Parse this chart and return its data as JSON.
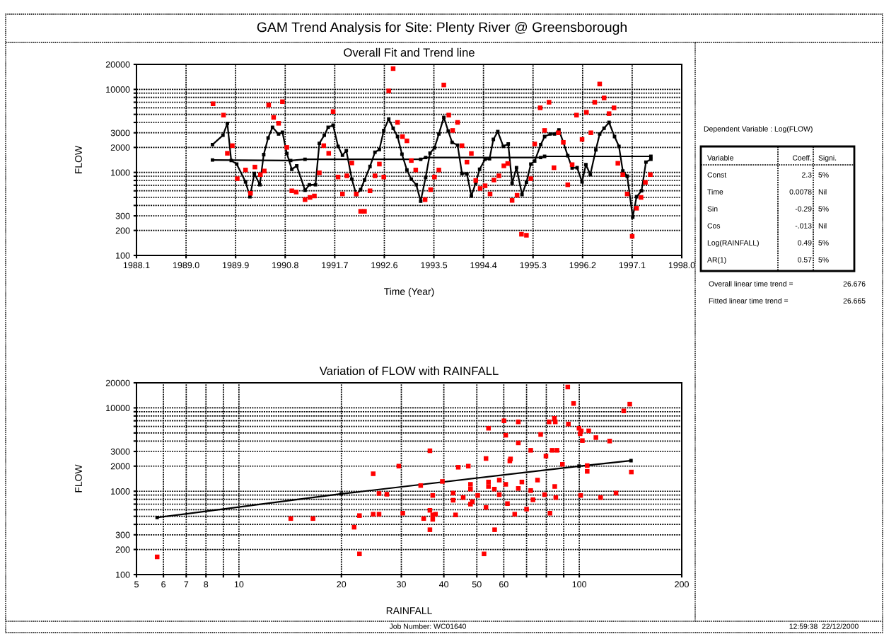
{
  "chart_data": [
    {
      "type": "scatter",
      "title": "Overall Fit and Trend line",
      "xlabel": "Time (Year)",
      "ylabel": "FLOW",
      "log": true,
      "grid": true,
      "xlim": [
        1988.1,
        1998.0
      ],
      "xticks": [
        1988.1,
        {
          "value": 1989.0,
          "label": "1989.0"
        },
        1989.9,
        1990.8,
        1991.7,
        1992.6,
        1993.5,
        1994.4,
        1995.3,
        1996.2,
        1997.1,
        {
          "value": 1998.0,
          "label": "1998.0"
        }
      ],
      "ylim": [
        100,
        20000
      ],
      "yticks": [
        100,
        200,
        300,
        {
          "value": 400,
          "label": null
        },
        {
          "value": 500,
          "label": null
        },
        {
          "value": 600,
          "label": null
        },
        {
          "value": 700,
          "label": null
        },
        {
          "value": 800,
          "label": null
        },
        {
          "value": 900,
          "label": null
        },
        1000,
        2000,
        3000,
        {
          "value": 4000,
          "label": null
        },
        {
          "value": 5000,
          "label": null
        },
        {
          "value": 6000,
          "label": null
        },
        {
          "value": 7000,
          "label": null
        },
        {
          "value": 8000,
          "label": null
        },
        {
          "value": 9000,
          "label": null
        },
        10000,
        20000
      ],
      "series": [
        {
          "type": "scatter",
          "color": "#ff0000",
          "marker": "square",
          "x": [
            1989.49,
            1989.68,
            1989.75,
            1989.84,
            1989.93,
            1990.08,
            1990.17,
            1990.25,
            1990.35,
            1990.42,
            1990.5,
            1990.59,
            1990.68,
            1990.75,
            1990.83,
            1990.92,
            1991.0,
            1991.16,
            1991.25,
            1991.33,
            1991.42,
            1991.5,
            1991.59,
            1991.67,
            1991.76,
            1991.84,
            1991.92,
            1992.01,
            1992.09,
            1992.17,
            1992.24,
            1992.34,
            1992.43,
            1992.51,
            1992.59,
            1992.68,
            1992.76,
            1992.84,
            1992.93,
            1993.01,
            1993.09,
            1993.17,
            1993.34,
            1993.44,
            1993.51,
            1993.59,
            1993.68,
            1993.77,
            1993.84,
            1993.93,
            1994.01,
            1994.1,
            1994.18,
            1994.26,
            1994.34,
            1994.43,
            1994.52,
            1994.59,
            1994.68,
            1994.77,
            1994.84,
            1994.92,
            1995.01,
            1995.09,
            1995.18,
            1995.26,
            1995.33,
            1995.43,
            1995.51,
            1995.59,
            1995.68,
            1995.76,
            1995.85,
            1995.93,
            1996.01,
            1996.09,
            1996.19,
            1996.27,
            1996.35,
            1996.42,
            1996.51,
            1996.59,
            1996.68,
            1996.77,
            1996.84,
            1996.93,
            1997.01,
            1997.1,
            1997.18,
            1997.26,
            1997.34,
            1997.43
          ],
          "values": [
            6700,
            4900,
            1700,
            2100,
            840,
            1070,
            560,
            1160,
            940,
            1040,
            6500,
            4600,
            3900,
            7100,
            2000,
            600,
            580,
            470,
            500,
            520,
            990,
            2100,
            1700,
            5400,
            880,
            550,
            910,
            1300,
            550,
            340,
            340,
            600,
            910,
            1260,
            880,
            9600,
            17800,
            4000,
            2700,
            2400,
            1390,
            1070,
            470,
            620,
            880,
            1070,
            11300,
            4900,
            3200,
            4000,
            2100,
            1330,
            1690,
            800,
            640,
            690,
            550,
            810,
            910,
            1200,
            1280,
            460,
            530,
            180,
            175,
            840,
            2200,
            6000,
            3200,
            7000,
            1140,
            3000,
            2300,
            710,
            1240,
            4900,
            2500,
            5300,
            3000,
            7000,
            11600,
            7900,
            5100,
            6000,
            1290,
            940,
            550,
            170,
            370,
            500,
            760,
            940
          ]
        },
        {
          "type": "line",
          "color": "#000000",
          "marker": "square",
          "line_style": "solid",
          "x": [
            1989.48,
            1989.67,
            1989.75,
            1989.82,
            1989.92,
            1990.08,
            1990.16,
            1990.24,
            1990.34,
            1990.41,
            1990.49,
            1990.57,
            1990.68,
            1990.75,
            1990.83,
            1990.92,
            1991.01,
            1991.16,
            1991.24,
            1991.35,
            1991.42,
            1991.51,
            1991.58,
            1991.67,
            1991.76,
            1991.84,
            1991.91,
            1992.01,
            1992.09,
            1992.17,
            1992.24,
            1992.34,
            1992.43,
            1992.51,
            1992.59,
            1992.68,
            1992.76,
            1992.84,
            1992.92,
            1993.01,
            1993.09,
            1993.18,
            1993.26,
            1993.35,
            1993.43,
            1993.51,
            1993.59,
            1993.68,
            1993.76,
            1993.83,
            1993.93,
            1994.01,
            1994.1,
            1994.18,
            1994.26,
            1994.33,
            1994.43,
            1994.51,
            1994.58,
            1994.66,
            1994.76,
            1994.85,
            1994.92,
            1995.0,
            1995.1,
            1995.18,
            1995.26,
            1995.33,
            1995.44,
            1995.51,
            1995.61,
            1995.69,
            1995.77,
            1995.85,
            1995.93,
            1996.01,
            1996.1,
            1996.19,
            1996.26,
            1996.34,
            1996.44,
            1996.51,
            1996.59,
            1996.68,
            1996.78,
            1996.86,
            1996.93,
            1997.01,
            1997.11,
            1997.18,
            1997.27,
            1997.35,
            1997.44
          ],
          "values": [
            2160,
            2800,
            3900,
            1390,
            1260,
            770,
            510,
            970,
            710,
            1640,
            2600,
            3500,
            2900,
            3050,
            1690,
            1090,
            1200,
            610,
            710,
            710,
            2240,
            2800,
            3500,
            3700,
            2060,
            1610,
            1830,
            830,
            540,
            620,
            810,
            1180,
            1750,
            1890,
            3200,
            4400,
            3400,
            2700,
            1660,
            1070,
            830,
            710,
            450,
            870,
            1710,
            1970,
            2900,
            4600,
            3150,
            2300,
            2130,
            970,
            960,
            520,
            750,
            1090,
            1440,
            1460,
            2500,
            3100,
            2060,
            2200,
            740,
            1140,
            540,
            760,
            1260,
            1370,
            2160,
            2700,
            2900,
            2900,
            3250,
            2300,
            1590,
            1130,
            1140,
            770,
            1240,
            940,
            1870,
            2900,
            3400,
            4000,
            2700,
            2060,
            1040,
            900,
            290,
            510,
            600,
            1330,
            1440
          ]
        },
        {
          "type": "line",
          "color": "#000000",
          "marker": "square",
          "line_style": "solid",
          "x": [
            1989.48,
            1990.9,
            1991.16,
            1993.26,
            1993.35,
            1995.44,
            1995.51,
            1997.44
          ],
          "values": [
            1410,
            1390,
            1440,
            1440,
            1510,
            1510,
            1560,
            1560
          ]
        }
      ]
    },
    {
      "type": "scatter",
      "title": "Variation of FLOW with RAINFALL",
      "xlabel": "RAINFALL",
      "ylabel": "FLOW",
      "log": "xy",
      "grid": true,
      "xlim": [
        5,
        200
      ],
      "xticks": [
        5,
        6,
        7,
        8,
        {
          "value": 9,
          "label": null
        },
        10,
        20,
        30,
        40,
        50,
        60,
        {
          "value": 70,
          "label": null
        },
        {
          "value": 80,
          "label": null
        },
        {
          "value": 90,
          "label": null
        },
        100,
        200
      ],
      "ylim": [
        100,
        20000
      ],
      "yticks": [
        100,
        200,
        300,
        {
          "value": 400,
          "label": null
        },
        {
          "value": 500,
          "label": null
        },
        {
          "value": 600,
          "label": null
        },
        {
          "value": 700,
          "label": null
        },
        {
          "value": 800,
          "label": null
        },
        {
          "value": 900,
          "label": null
        },
        1000,
        2000,
        3000,
        {
          "value": 4000,
          "label": null
        },
        {
          "value": 5000,
          "label": null
        },
        {
          "value": 6000,
          "label": null
        },
        {
          "value": 7000,
          "label": null
        },
        {
          "value": 8000,
          "label": null
        },
        {
          "value": 9000,
          "label": null
        },
        10000,
        20000
      ],
      "series": [
        {
          "type": "scatter",
          "color": "#ff0000",
          "marker": "square",
          "x": [
            5.75,
            14.2,
            16.5,
            21.8,
            22.6,
            22.6,
            24.8,
            24.8,
            25.8,
            25.8,
            27.2,
            29.5,
            30.3,
            34.2,
            34.9,
            36.4,
            36.4,
            36.4,
            37.1,
            37.1,
            37.8,
            37.1,
            39.6,
            42.6,
            42.6,
            43.3,
            44.1,
            45.6,
            47.2,
            47.9,
            47.9,
            47.9,
            48.5,
            50.3,
            52.5,
            53.2,
            53.2,
            54.1,
            54.1,
            54.1,
            56.3,
            56.4,
            58.2,
            58.2,
            60.1,
            60.8,
            60.8,
            61.5,
            62.5,
            62.8,
            64.6,
            66.2,
            66.2,
            66.2,
            67.8,
            70.0,
            72.0,
            72.0,
            73.1,
            75.4,
            77.0,
            79.1,
            79.8,
            82.0,
            81.5,
            83.2,
            84.5,
            85.0,
            84.7,
            85.3,
            86.0,
            89.2,
            92.5,
            92.9,
            96.2,
            99.8,
            100.6,
            100.9,
            101.3,
            102.1,
            105.5,
            105.5,
            106.6,
            111.9,
            115.5,
            122.8,
            128.2,
            135.1,
            140.7,
            142.2
          ],
          "values": [
            163,
            470,
            470,
            370,
            510,
            177,
            1620,
            530,
            530,
            940,
            920,
            2000,
            545,
            1170,
            470,
            3060,
            590,
            345,
            890,
            520,
            530,
            460,
            1310,
            950,
            780,
            520,
            1940,
            840,
            2000,
            1210,
            1060,
            700,
            750,
            890,
            177,
            640,
            2470,
            5700,
            1290,
            1140,
            1060,
            345,
            1360,
            910,
            7000,
            4700,
            1210,
            710,
            2310,
            2440,
            530,
            6800,
            3800,
            1080,
            1290,
            610,
            3100,
            1020,
            790,
            1360,
            4800,
            910,
            2640,
            545,
            6800,
            3100,
            7500,
            6800,
            1140,
            840,
            3100,
            2100,
            17800,
            6400,
            11300,
            5700,
            4900,
            890,
            5300,
            4050,
            2030,
            1730,
            5300,
            4400,
            840,
            4000,
            950,
            9200,
            11100,
            1700
          ]
        },
        {
          "type": "line",
          "color": "#000000",
          "marker": "square",
          "line_style": "solid",
          "x": [
            5.75,
            20.0,
            99.8,
            141.9
          ],
          "values": [
            484,
            930,
            2000,
            2330
          ]
        }
      ]
    },
    {
      "type": "other",
      "title": "GAM Trend Analysis for Site: Plenty River @ Greensborough",
      "annotations": [
        "Dependent Variable : Log(FLOW)",
        "Variable",
        "Coeff.",
        "Signi.",
        "Const",
        "2.3",
        "5%",
        "Time",
        "0.0078",
        "Nil",
        "Sin",
        "-0.29",
        "5%",
        "Cos",
        "-.013",
        "Nil",
        "Log(RAINFALL)",
        "0.49",
        "5%",
        "AR(1)",
        "0.57",
        "5%",
        "Overall linear time trend =",
        "26.676",
        "Fitted linear time trend =",
        "26.665",
        "Job Number: WC01640",
        "12:59:38  22/12/2000"
      ]
    }
  ]
}
